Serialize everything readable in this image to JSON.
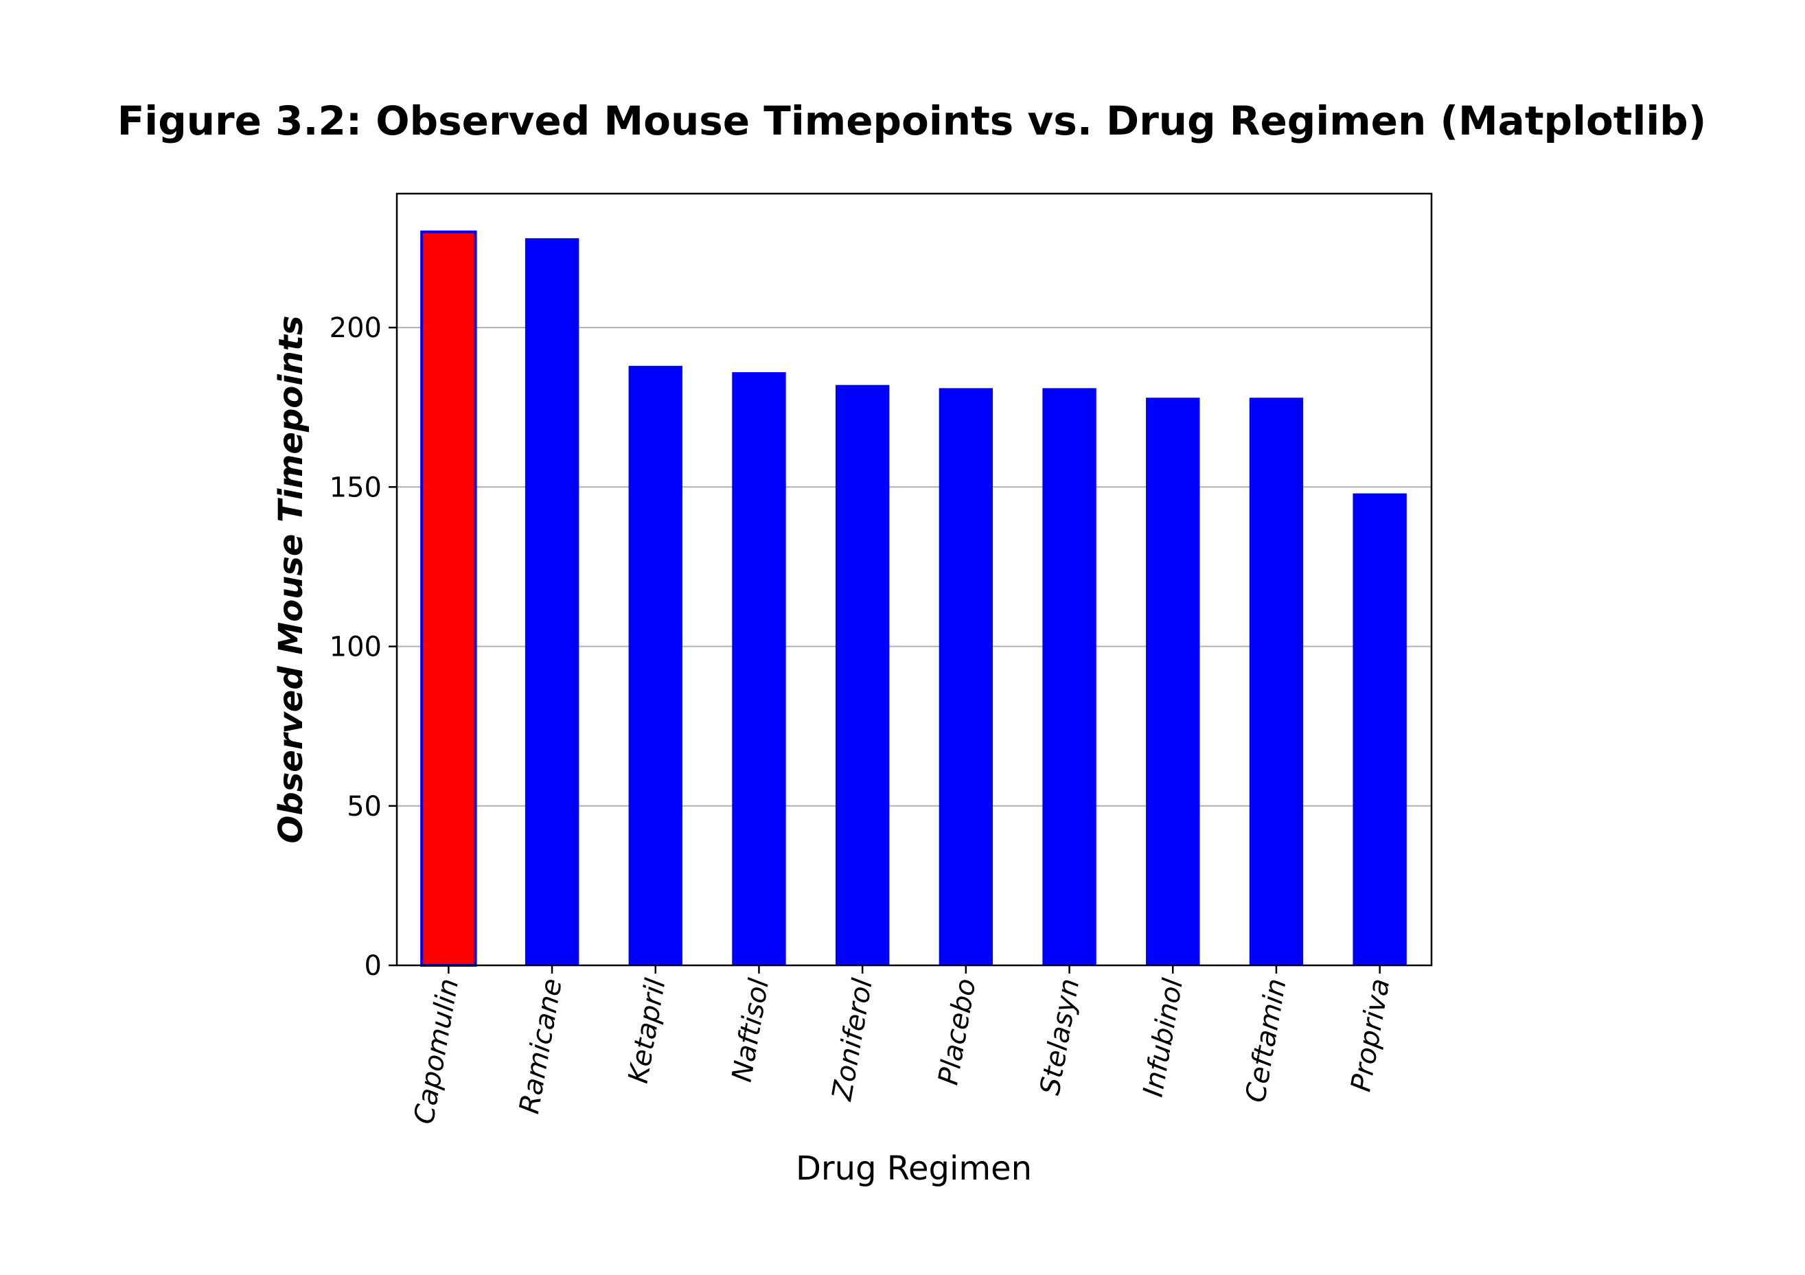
{
  "chart_data": {
    "type": "bar",
    "title": "Figure 3.2: Observed Mouse Timepoints vs. Drug Regimen (Matplotlib)",
    "xlabel": "Drug Regimen",
    "ylabel": "Observed Mouse Timepoints",
    "categories": [
      "Capomulin",
      "Ramicane",
      "Ketapril",
      "Naftisol",
      "Zoniferol",
      "Placebo",
      "Stelasyn",
      "Infubinol",
      "Ceftamin",
      "Propriva"
    ],
    "values": [
      230,
      228,
      188,
      186,
      182,
      181,
      181,
      178,
      178,
      148
    ],
    "ylim": [
      0,
      242
    ],
    "yticks": [
      0,
      50,
      100,
      150,
      200
    ],
    "ytick_labels": [
      "0",
      "50",
      "100",
      "150",
      "200"
    ],
    "grid": "horizontal",
    "highlight_index": 0,
    "colors": {
      "bar": "#0000ff",
      "highlight": "#ff0000",
      "highlight_edge": "#0000ff",
      "grid": "#b0b0b0",
      "axes": "#000000"
    }
  }
}
